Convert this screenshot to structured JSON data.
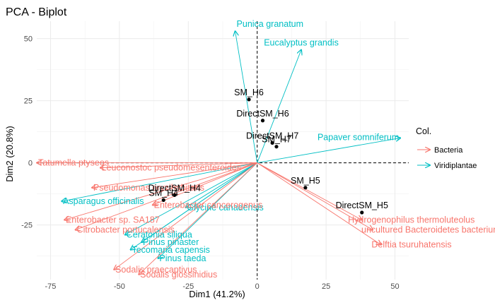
{
  "chart_data": {
    "type": "scatter",
    "title": "PCA - Biplot",
    "xlabel": "Dim1 (41.2%)",
    "ylabel": "Dim2 (20.8%)",
    "xlim": [
      -80,
      55
    ],
    "ylim": [
      -47,
      57
    ],
    "xticks": [
      -75,
      -50,
      -25,
      0,
      25,
      50
    ],
    "yticks": [
      -25,
      0,
      25,
      50
    ],
    "grid": true,
    "legend": {
      "title": "Col.",
      "position": "right",
      "entries": [
        {
          "name": "Bacteria",
          "color": "#F8766D"
        },
        {
          "name": "Viridiplantae",
          "color": "#00BFC4"
        }
      ]
    },
    "points": [
      {
        "label": "SM_H6",
        "x": -3,
        "y": 25.5
      },
      {
        "label": "DirectSM_H6",
        "x": 2,
        "y": 17
      },
      {
        "label": "DirectSM_H7",
        "x": 5.5,
        "y": 8
      },
      {
        "label": "SM_H7",
        "x": 7,
        "y": 6.5
      },
      {
        "label": "SM_H5",
        "x": 17.5,
        "y": -10
      },
      {
        "label": "DirectSM_H5",
        "x": 38,
        "y": -20
      },
      {
        "label": "DirectSM_H4",
        "x": -30,
        "y": -13
      },
      {
        "label": "SM_H4",
        "x": -34,
        "y": -15
      }
    ],
    "arrows": [
      {
        "label": "Punica granatum",
        "group": "Viridiplantae",
        "x": -8,
        "y": 53
      },
      {
        "label": "Eucalyptus grandis",
        "group": "Viridiplantae",
        "x": 16,
        "y": 45.5
      },
      {
        "label": "Papaver somniferum",
        "group": "Viridiplantae",
        "x": 52,
        "y": 10
      },
      {
        "label": "Asparagus officinalis",
        "group": "Viridiplantae",
        "x": -71,
        "y": -15.5
      },
      {
        "label": "Ceratonia siliqua",
        "group": "Viridiplantae",
        "x": -48,
        "y": -29
      },
      {
        "label": "Pinus pinaster",
        "group": "Viridiplantae",
        "x": -42,
        "y": -32
      },
      {
        "label": "Tecomaria capensis",
        "group": "Viridiplantae",
        "x": -46,
        "y": -35
      },
      {
        "label": "Pinus taeda",
        "group": "Viridiplantae",
        "x": -36,
        "y": -38.5
      },
      {
        "label": "Glycine canadensis",
        "group": "Viridiplantae",
        "x": -26,
        "y": -18
      },
      {
        "label": "Tatumella ptyseos",
        "group": "Bacteria",
        "x": -80,
        "y": 0
      },
      {
        "label": "Leuconostoc pseudomesenteroides",
        "group": "Bacteria",
        "x": -57,
        "y": -2
      },
      {
        "label": "Pseudomonas oryzihabitans",
        "group": "Bacteria",
        "x": -60,
        "y": -10
      },
      {
        "label": "Enterobacter sp. SA187",
        "group": "Bacteria",
        "x": -70,
        "y": -23
      },
      {
        "label": "Enterobacter cancerogenus",
        "group": "Bacteria",
        "x": -38,
        "y": -17
      },
      {
        "label": "Citrobacter portucalensis",
        "group": "Bacteria",
        "x": -66,
        "y": -27
      },
      {
        "label": "Sodalis praecaptivus",
        "group": "Bacteria",
        "x": -52,
        "y": -43
      },
      {
        "label": "Sodalis glossinidius",
        "group": "Bacteria",
        "x": -43,
        "y": -45
      },
      {
        "label": "Hydrogenophilus thermoluteolus",
        "group": "Bacteria",
        "x": 38,
        "y": -23
      },
      {
        "label": "uncultured Bacteroidetes bacterium",
        "group": "Bacteria",
        "x": 42,
        "y": -27
      },
      {
        "label": "Delftia tsuruhatensis",
        "group": "Bacteria",
        "x": 45,
        "y": -33
      }
    ]
  }
}
